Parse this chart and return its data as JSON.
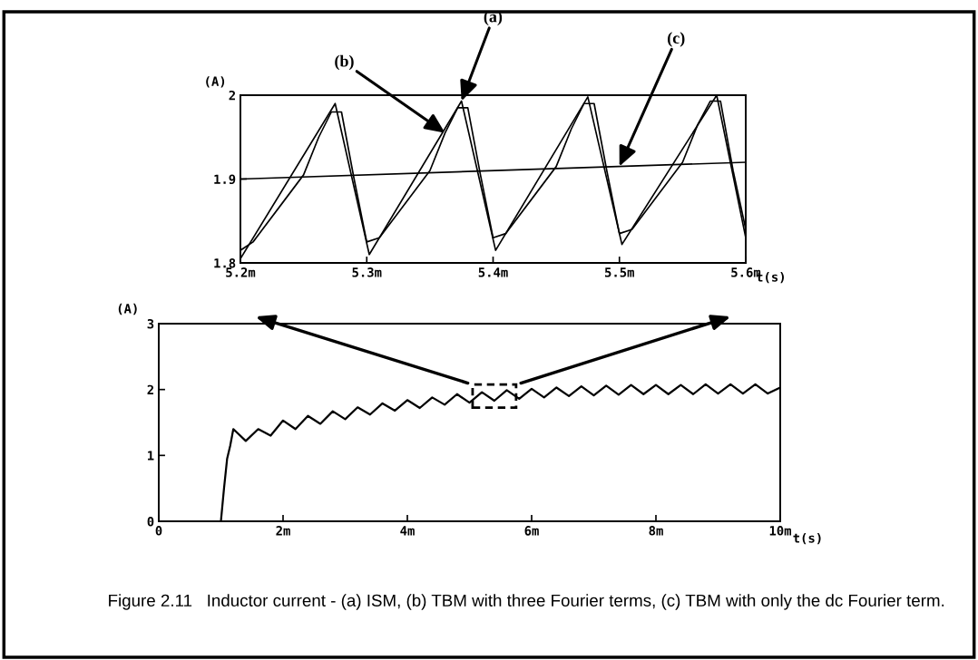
{
  "chart_data": [
    {
      "type": "line",
      "xlabel": "t(s)",
      "ylabel": "(A)",
      "xlim": [
        5.2,
        5.6
      ],
      "ylim": [
        1.8,
        2.0
      ],
      "xticks": [
        {
          "value": 5.2,
          "label": "5.2m"
        },
        {
          "value": 5.3,
          "label": "5.3m"
        },
        {
          "value": 5.4,
          "label": "5.4m"
        },
        {
          "value": 5.5,
          "label": "5.5m"
        },
        {
          "value": 5.6,
          "label": "5.6m"
        }
      ],
      "yticks": [
        1.8,
        1.9,
        2
      ],
      "series": [
        {
          "color": "#000000",
          "x": [
            5.2,
            5.275,
            5.302,
            5.375,
            5.402,
            5.475,
            5.502,
            5.577,
            5.6
          ],
          "values": [
            1.805,
            1.99,
            1.81,
            1.993,
            1.815,
            1.998,
            1.822,
            2.0,
            1.83
          ]
        },
        {
          "color": "#000000",
          "x": [
            5.2,
            5.21,
            5.235,
            5.25,
            5.262,
            5.272,
            5.28,
            5.29,
            5.3,
            5.31,
            5.335,
            5.35,
            5.362,
            5.372,
            5.38,
            5.39,
            5.4,
            5.41,
            5.435,
            5.45,
            5.462,
            5.472,
            5.48,
            5.49,
            5.5,
            5.51,
            5.535,
            5.55,
            5.562,
            5.572,
            5.58,
            5.59,
            5.6
          ],
          "values": [
            1.815,
            1.825,
            1.875,
            1.905,
            1.95,
            1.98,
            1.98,
            1.9,
            1.825,
            1.83,
            1.88,
            1.91,
            1.955,
            1.985,
            1.985,
            1.905,
            1.83,
            1.835,
            1.885,
            1.915,
            1.96,
            1.99,
            1.99,
            1.91,
            1.835,
            1.84,
            1.89,
            1.92,
            1.965,
            1.993,
            1.993,
            1.91,
            1.84
          ]
        },
        {
          "color": "#000000",
          "x": [
            5.2,
            5.6
          ],
          "values": [
            1.9,
            1.92
          ]
        }
      ],
      "annotations": [
        {
          "text": "(a)",
          "x": 5.375,
          "y": 1.993
        },
        {
          "text": "(b)",
          "x": 5.362,
          "y": 1.955
        },
        {
          "text": "(c)",
          "x": 5.5,
          "y": 1.915
        }
      ]
    },
    {
      "type": "line",
      "xlabel": "t(s)",
      "ylabel": "(A)",
      "xlim": [
        0,
        10
      ],
      "ylim": [
        0,
        3
      ],
      "xticks": [
        0,
        {
          "value": 2,
          "label": "2m"
        },
        {
          "value": 4,
          "label": "4m"
        },
        {
          "value": 6,
          "label": "6m"
        },
        {
          "value": 8,
          "label": "8m"
        },
        {
          "value": 10,
          "label": "10m"
        }
      ],
      "yticks": [
        0,
        1,
        2,
        3
      ],
      "series": [
        {
          "color": "#000000",
          "x": [
            0,
            1.0,
            1.05,
            1.1,
            1.15,
            1.2,
            1.4,
            1.6,
            1.8,
            2.0,
            2.2,
            2.4,
            2.6,
            2.8,
            3.0,
            3.2,
            3.4,
            3.6,
            3.8,
            4.0,
            4.2,
            4.4,
            4.6,
            4.8,
            5.0,
            5.2,
            5.4,
            5.6,
            5.8,
            6.0,
            6.2,
            6.4,
            6.6,
            6.8,
            7.0,
            7.2,
            7.4,
            7.6,
            7.8,
            8.0,
            8.2,
            8.4,
            8.6,
            8.8,
            9.0,
            9.2,
            9.4,
            9.6,
            9.8,
            10.0
          ],
          "values": [
            0,
            0,
            0.5,
            0.95,
            1.15,
            1.4,
            1.22,
            1.4,
            1.3,
            1.53,
            1.4,
            1.6,
            1.48,
            1.67,
            1.55,
            1.73,
            1.62,
            1.79,
            1.68,
            1.84,
            1.72,
            1.88,
            1.77,
            1.93,
            1.8,
            1.96,
            1.83,
            1.99,
            1.86,
            2.01,
            1.88,
            2.03,
            1.9,
            2.05,
            1.91,
            2.06,
            1.92,
            2.07,
            1.93,
            2.07,
            1.93,
            2.07,
            1.93,
            2.08,
            1.94,
            2.08,
            1.94,
            2.08,
            1.94,
            2.03
          ]
        }
      ],
      "annotations": [
        "Figure 2.11   Inductor current - (a) ISM, (b) TBM with three Fourier terms, (c) TBM with only the dc Fourier term."
      ]
    }
  ]
}
